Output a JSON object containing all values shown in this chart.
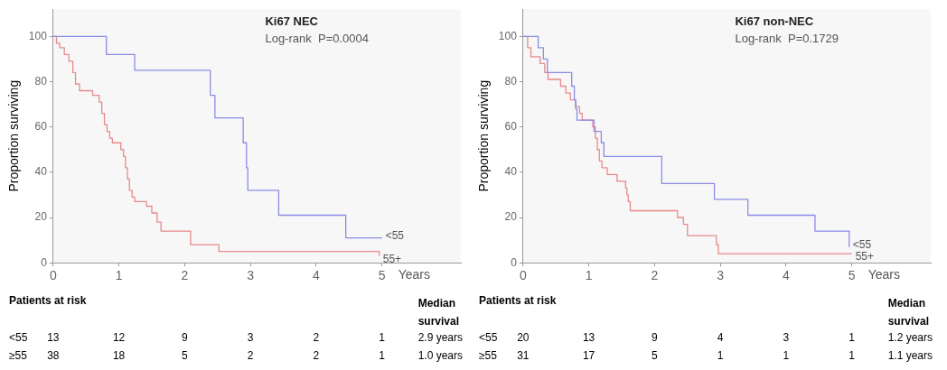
{
  "chart_data": [
    {
      "type": "step",
      "title": "Ki67 NEC",
      "subtitle": "Log-rank  P=0.0004",
      "xlabel": "Years",
      "ylabel": "Proportion surviving",
      "xlim": [
        0,
        6.2
      ],
      "ylim": [
        0,
        112
      ],
      "xticks": [
        0,
        1,
        2,
        3,
        4,
        5
      ],
      "yticks": [
        0,
        20,
        40,
        60,
        80,
        100
      ],
      "grid": false,
      "legend": false,
      "marker": "none",
      "series": [
        {
          "name": "<55",
          "color": "#8c8ce6",
          "x": [
            0,
            0.81,
            1.24,
            2.39,
            2.46,
            2.89,
            2.94,
            2.96,
            3.43,
            4.45,
            5.0
          ],
          "values": [
            100,
            92,
            85,
            74,
            64,
            53,
            42,
            32,
            21,
            11,
            11
          ]
        },
        {
          "name": "55+",
          "color": "#e88a8a",
          "x": [
            0,
            0.05,
            0.1,
            0.17,
            0.24,
            0.3,
            0.34,
            0.4,
            0.6,
            0.7,
            0.74,
            0.78,
            0.82,
            0.86,
            0.9,
            1.03,
            1.07,
            1.1,
            1.13,
            1.16,
            1.2,
            1.24,
            1.42,
            1.5,
            1.58,
            1.64,
            2.09,
            2.52,
            4.96
          ],
          "values": [
            100,
            97,
            95,
            92,
            89,
            84,
            79,
            76,
            74,
            71,
            66,
            61,
            58,
            55,
            53,
            50,
            47,
            42,
            37,
            32,
            29,
            27,
            25,
            22,
            18,
            14,
            8,
            5,
            3
          ]
        }
      ],
      "annotations": [
        "Patients at risk",
        "Median survival",
        "<55 13 12 9 3 2 1 2.9 years",
        "≥55 38 18 5 2 2 1 1.0 years"
      ]
    },
    {
      "type": "step",
      "title": "Ki67 non-NEC",
      "subtitle": "Log-rank  P=0.1729",
      "xlabel": "Years",
      "ylabel": "Proportion surviving",
      "xlim": [
        0,
        6.2
      ],
      "ylim": [
        0,
        112
      ],
      "xticks": [
        0,
        1,
        2,
        3,
        4,
        5
      ],
      "yticks": [
        0,
        20,
        40,
        60,
        80,
        100
      ],
      "grid": false,
      "legend": false,
      "marker": "none",
      "series": [
        {
          "name": "<55",
          "color": "#8c8ce6",
          "x": [
            0,
            0.23,
            0.31,
            0.37,
            0.74,
            0.78,
            0.8,
            0.82,
            1.08,
            1.19,
            1.23,
            2.11,
            2.91,
            3.42,
            4.44,
            4.96
          ],
          "values": [
            100,
            95,
            90,
            84,
            78,
            72,
            68,
            63,
            58,
            53,
            47,
            35,
            28,
            21,
            14,
            7
          ]
        },
        {
          "name": "55+",
          "color": "#e88a8a",
          "x": [
            0,
            0.07,
            0.12,
            0.26,
            0.33,
            0.38,
            0.57,
            0.65,
            0.72,
            0.8,
            0.86,
            0.9,
            1.06,
            1.1,
            1.13,
            1.16,
            1.2,
            1.28,
            1.43,
            1.56,
            1.58,
            1.6,
            1.63,
            2.35,
            2.44,
            2.5,
            2.94,
            2.97,
            5.0
          ],
          "values": [
            100,
            95,
            91,
            88,
            84,
            81,
            78,
            75,
            72,
            69,
            66,
            63,
            60,
            55,
            50,
            45,
            42,
            39,
            36,
            33,
            30,
            27,
            23,
            20,
            17,
            12,
            8,
            4,
            4
          ]
        }
      ],
      "annotations": [
        "Patients at risk",
        "Median survival",
        "<55 20 13 9 4 3 1 1.2 years",
        "≥55 31 17 5 1 1 1 1.1 years"
      ]
    }
  ]
}
